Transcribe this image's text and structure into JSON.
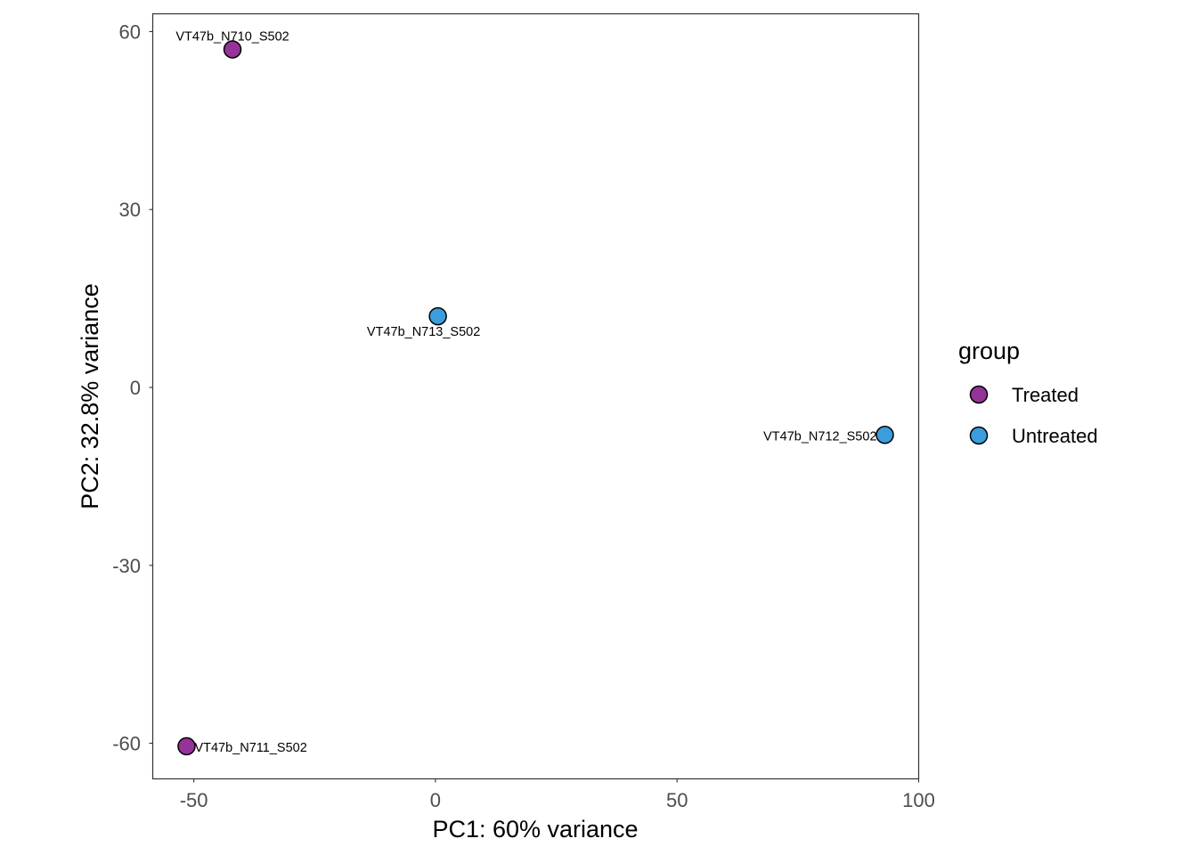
{
  "chart_data": {
    "type": "scatter",
    "title": "",
    "xlabel": "PC1: 60% variance",
    "ylabel": "PC2: 32.8% variance",
    "xlim": [
      -58.5,
      100
    ],
    "ylim": [
      -66,
      63
    ],
    "xticks": [
      -50,
      0,
      50,
      100
    ],
    "xtick_labels": [
      "-50",
      "0",
      "50",
      "100"
    ],
    "yticks": [
      60,
      30,
      0,
      -30,
      -60
    ],
    "ytick_labels": [
      "60",
      "30",
      "0",
      "-30",
      "-60"
    ],
    "grid": false,
    "legend": {
      "title": "group",
      "position": "right",
      "entries": [
        {
          "label": "Treated",
          "color": "#953399"
        },
        {
          "label": "Untreated",
          "color": "#3b9ddb"
        }
      ]
    },
    "points": [
      {
        "label": "VT47b_N710_S502",
        "group": "Treated",
        "x": -42,
        "y": 57,
        "label_pos": "above"
      },
      {
        "label": "VT47b_N711_S502",
        "group": "Treated",
        "x": -51.5,
        "y": -60.5,
        "label_pos": "right"
      },
      {
        "label": "VT47b_N713_S502",
        "group": "Untreated",
        "x": 0.5,
        "y": 12,
        "label_pos": "below"
      },
      {
        "label": "VT47b_N712_S502",
        "group": "Untreated",
        "x": 93,
        "y": -8,
        "label_pos": "left"
      }
    ]
  }
}
